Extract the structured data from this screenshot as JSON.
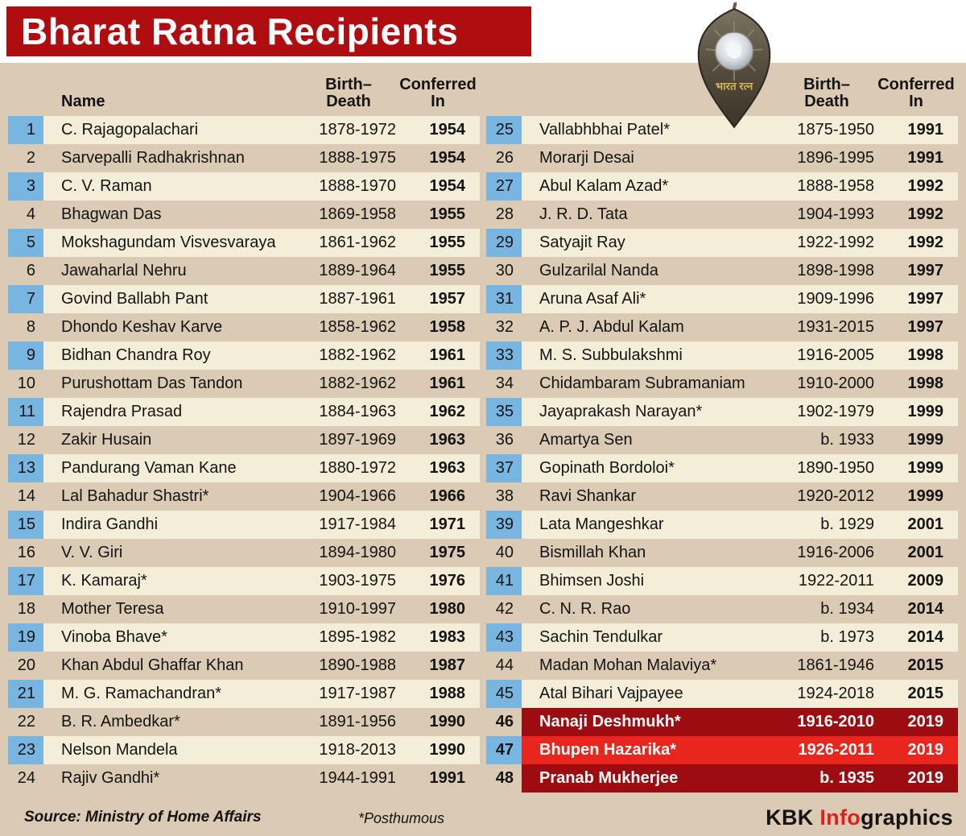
{
  "title": "Bharat Ratna Recipients",
  "medal": {
    "text": "भारत रत्न"
  },
  "headers": {
    "name": "Name",
    "birth_line1": "Birth–",
    "birth_line2": "Death",
    "conf_line1": "Conferred",
    "conf_line2": "In"
  },
  "colors": {
    "title_bar": "#b00d10",
    "background_tan": "#dbcbb4",
    "row_cream": "#f4eed9",
    "number_blue": "#78b5e0",
    "highlight_dark_red": "#9c0c10",
    "highlight_bright_red": "#e9261d",
    "brand_red": "#e0201a"
  },
  "chart_data": {
    "type": "table",
    "title": "Bharat Ratna Recipients",
    "columns": [
      "No.",
      "Name",
      "Birth–Death",
      "Conferred In"
    ],
    "layout": "two column halves: rows 1-24 left, rows 25-48 right; rows 46-48 highlighted red (2019 awardees)",
    "rows": [
      {
        "num": 1,
        "name": "C. Rajagopalachari",
        "years": "1878-1972",
        "conferred": "1954"
      },
      {
        "num": 2,
        "name": "Sarvepalli Radhakrishnan",
        "years": "1888-1975",
        "conferred": "1954"
      },
      {
        "num": 3,
        "name": "C. V. Raman",
        "years": "1888-1970",
        "conferred": "1954"
      },
      {
        "num": 4,
        "name": "Bhagwan Das",
        "years": "1869-1958",
        "conferred": "1955"
      },
      {
        "num": 5,
        "name": "Mokshagundam Visvesvaraya",
        "years": "1861-1962",
        "conferred": "1955"
      },
      {
        "num": 6,
        "name": "Jawaharlal Nehru",
        "years": "1889-1964",
        "conferred": "1955"
      },
      {
        "num": 7,
        "name": "Govind Ballabh Pant",
        "years": "1887-1961",
        "conferred": "1957"
      },
      {
        "num": 8,
        "name": "Dhondo Keshav Karve",
        "years": "1858-1962",
        "conferred": "1958"
      },
      {
        "num": 9,
        "name": "Bidhan Chandra Roy",
        "years": "1882-1962",
        "conferred": "1961"
      },
      {
        "num": 10,
        "name": "Purushottam Das Tandon",
        "years": "1882-1962",
        "conferred": "1961"
      },
      {
        "num": 11,
        "name": "Rajendra Prasad",
        "years": "1884-1963",
        "conferred": "1962"
      },
      {
        "num": 12,
        "name": "Zakir Husain",
        "years": "1897-1969",
        "conferred": "1963"
      },
      {
        "num": 13,
        "name": "Pandurang Vaman Kane",
        "years": "1880-1972",
        "conferred": "1963"
      },
      {
        "num": 14,
        "name": "Lal Bahadur Shastri*",
        "years": "1904-1966",
        "conferred": "1966"
      },
      {
        "num": 15,
        "name": "Indira Gandhi",
        "years": "1917-1984",
        "conferred": "1971"
      },
      {
        "num": 16,
        "name": "V. V. Giri",
        "years": "1894-1980",
        "conferred": "1975"
      },
      {
        "num": 17,
        "name": "K. Kamaraj*",
        "years": "1903-1975",
        "conferred": "1976"
      },
      {
        "num": 18,
        "name": "Mother Teresa",
        "years": "1910-1997",
        "conferred": "1980"
      },
      {
        "num": 19,
        "name": "Vinoba Bhave*",
        "years": "1895-1982",
        "conferred": "1983"
      },
      {
        "num": 20,
        "name": "Khan Abdul Ghaffar Khan",
        "years": "1890-1988",
        "conferred": "1987"
      },
      {
        "num": 21,
        "name": "M. G. Ramachandran*",
        "years": "1917-1987",
        "conferred": "1988"
      },
      {
        "num": 22,
        "name": "B. R. Ambedkar*",
        "years": "1891-1956",
        "conferred": "1990"
      },
      {
        "num": 23,
        "name": "Nelson Mandela",
        "years": "1918-2013",
        "conferred": "1990"
      },
      {
        "num": 24,
        "name": "Rajiv Gandhi*",
        "years": "1944-1991",
        "conferred": "1991"
      },
      {
        "num": 25,
        "name": "Vallabhbhai Patel*",
        "years": "1875-1950",
        "conferred": "1991"
      },
      {
        "num": 26,
        "name": "Morarji Desai",
        "years": "1896-1995",
        "conferred": "1991"
      },
      {
        "num": 27,
        "name": "Abul Kalam Azad*",
        "years": "1888-1958",
        "conferred": "1992"
      },
      {
        "num": 28,
        "name": "J. R. D. Tata",
        "years": "1904-1993",
        "conferred": "1992"
      },
      {
        "num": 29,
        "name": "Satyajit Ray",
        "years": "1922-1992",
        "conferred": "1992"
      },
      {
        "num": 30,
        "name": "Gulzarilal Nanda",
        "years": "1898-1998",
        "conferred": "1997"
      },
      {
        "num": 31,
        "name": "Aruna Asaf Ali*",
        "years": "1909-1996",
        "conferred": "1997"
      },
      {
        "num": 32,
        "name": "A. P. J. Abdul Kalam",
        "years": "1931-2015",
        "conferred": "1997"
      },
      {
        "num": 33,
        "name": "M. S. Subbulakshmi",
        "years": "1916-2005",
        "conferred": "1998"
      },
      {
        "num": 34,
        "name": "Chidambaram Subramaniam",
        "years": "1910-2000",
        "conferred": "1998"
      },
      {
        "num": 35,
        "name": "Jayaprakash Narayan*",
        "years": "1902-1979",
        "conferred": "1999"
      },
      {
        "num": 36,
        "name": "Amartya Sen",
        "years": "b. 1933",
        "conferred": "1999"
      },
      {
        "num": 37,
        "name": "Gopinath Bordoloi*",
        "years": "1890-1950",
        "conferred": "1999"
      },
      {
        "num": 38,
        "name": "Ravi Shankar",
        "years": "1920-2012",
        "conferred": "1999"
      },
      {
        "num": 39,
        "name": "Lata Mangeshkar",
        "years": "b. 1929",
        "conferred": "2001"
      },
      {
        "num": 40,
        "name": "Bismillah Khan",
        "years": "1916-2006",
        "conferred": "2001"
      },
      {
        "num": 41,
        "name": "Bhimsen Joshi",
        "years": "1922-2011",
        "conferred": "2009"
      },
      {
        "num": 42,
        "name": "C. N. R. Rao",
        "years": "b. 1934",
        "conferred": "2014"
      },
      {
        "num": 43,
        "name": "Sachin Tendulkar",
        "years": "b. 1973",
        "conferred": "2014"
      },
      {
        "num": 44,
        "name": "Madan Mohan Malaviya*",
        "years": "1861-1946",
        "conferred": "2015"
      },
      {
        "num": 45,
        "name": "Atal Bihari Vajpayee",
        "years": "1924-2018",
        "conferred": "2015"
      },
      {
        "num": 46,
        "name": "Nanaji Deshmukh*",
        "years": "1916-2010",
        "conferred": "2019",
        "highlight": "dark"
      },
      {
        "num": 47,
        "name": "Bhupen Hazarika*",
        "years": "1926-2011",
        "conferred": "2019",
        "highlight": "bright"
      },
      {
        "num": 48,
        "name": "Pranab Mukherjee",
        "years": "b. 1935",
        "conferred": "2019",
        "highlight": "dark"
      }
    ]
  },
  "footer": {
    "source": "Source: Ministry of Home Affairs",
    "note": "*Posthumous",
    "brand_kbk": "KBK ",
    "brand_info": "Info",
    "brand_graphics": "graphics"
  }
}
